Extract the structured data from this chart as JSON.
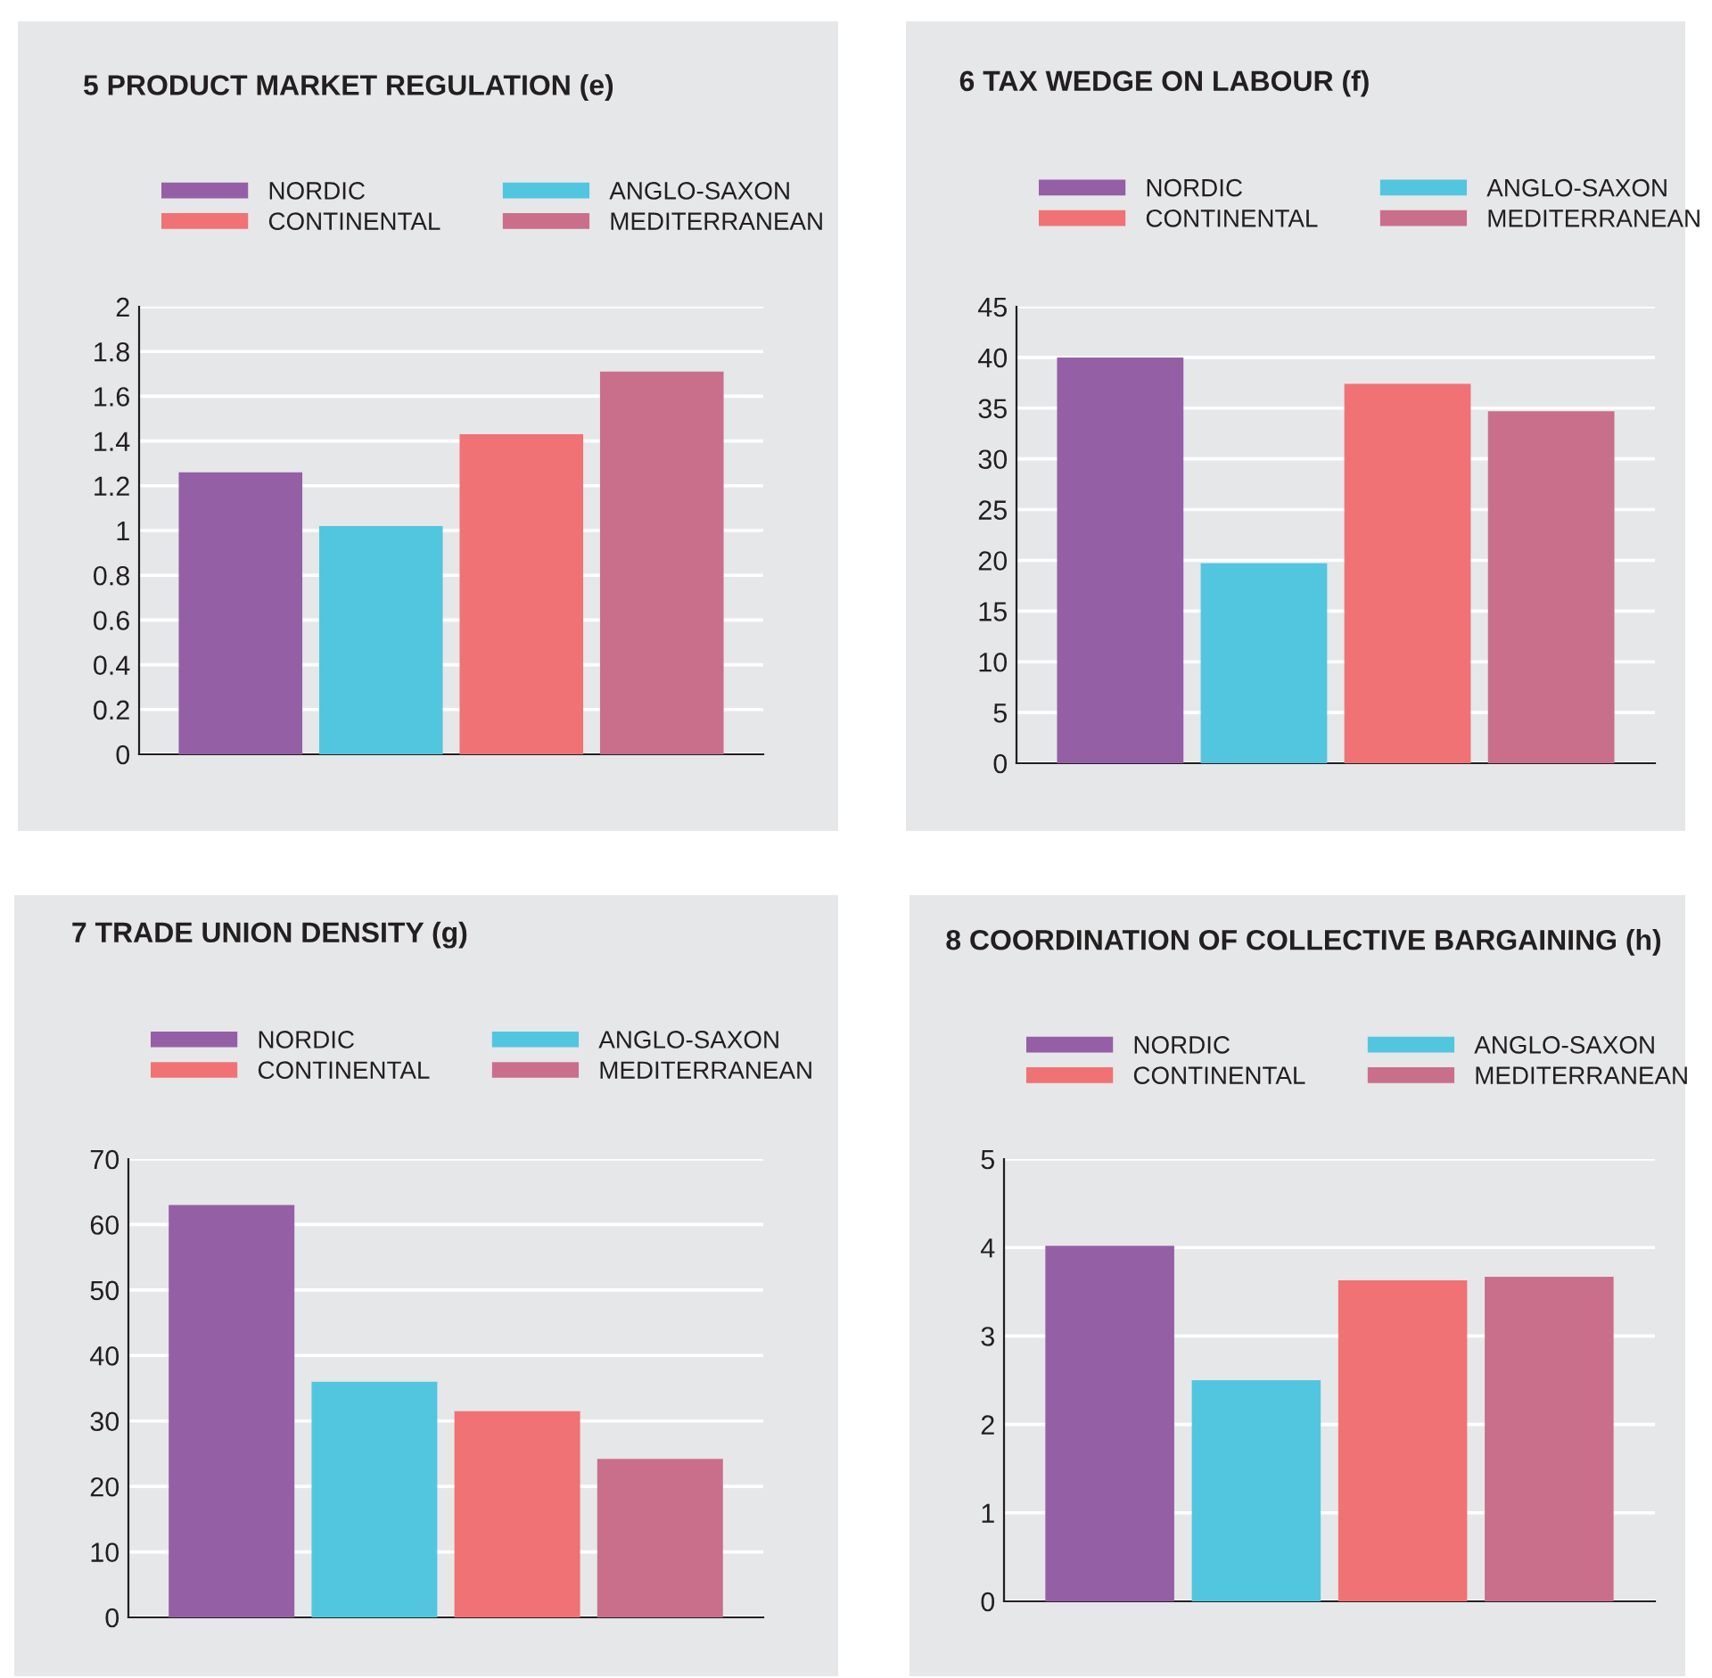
{
  "chart_data": [
    {
      "type": "bar",
      "title": "5 PRODUCT MARKET REGULATION (e)",
      "categories": [
        null
      ],
      "ylim": [
        0,
        2
      ],
      "yticks": [
        0,
        0.2,
        0.4,
        0.6,
        0.8,
        1,
        1.2,
        1.4,
        1.6,
        1.8,
        2
      ],
      "grid": "y",
      "legend": "top",
      "tick_labels": "y",
      "series": [
        {
          "name": "NORDIC",
          "color": "#955fa6",
          "values": [
            1.26
          ]
        },
        {
          "name": "ANGLO-SAXON",
          "color": "#52c6de",
          "values": [
            1.02
          ]
        },
        {
          "name": "CONTINENTAL",
          "color": "#f07275",
          "values": [
            1.43
          ]
        },
        {
          "name": "MEDITERRANEAN",
          "color": "#c96f8b",
          "values": [
            1.71
          ]
        }
      ]
    },
    {
      "type": "bar",
      "title": "6 TAX WEDGE ON LABOUR (f)",
      "categories": [
        null
      ],
      "ylim": [
        0,
        45
      ],
      "yticks": [
        0,
        5,
        10,
        15,
        20,
        25,
        30,
        35,
        40,
        45
      ],
      "grid": "y",
      "legend": "top",
      "tick_labels": "y",
      "series": [
        {
          "name": "NORDIC",
          "color": "#955fa6",
          "values": [
            40
          ]
        },
        {
          "name": "ANGLO-SAXON",
          "color": "#52c6de",
          "values": [
            19.7
          ]
        },
        {
          "name": "CONTINENTAL",
          "color": "#f07275",
          "values": [
            37.4
          ]
        },
        {
          "name": "MEDITERRANEAN",
          "color": "#c96f8b",
          "values": [
            34.7
          ]
        }
      ]
    },
    {
      "type": "bar",
      "title": "7 TRADE UNION DENSITY (g)",
      "categories": [
        null
      ],
      "ylim": [
        0,
        70
      ],
      "yticks": [
        0,
        10,
        20,
        30,
        40,
        50,
        60,
        70
      ],
      "grid": "y",
      "legend": "top",
      "tick_labels": "y",
      "series": [
        {
          "name": "NORDIC",
          "color": "#955fa6",
          "values": [
            63
          ]
        },
        {
          "name": "ANGLO-SAXON",
          "color": "#52c6de",
          "values": [
            36
          ]
        },
        {
          "name": "CONTINENTAL",
          "color": "#f07275",
          "values": [
            31.5
          ]
        },
        {
          "name": "MEDITERRANEAN",
          "color": "#c96f8b",
          "values": [
            24.2
          ]
        }
      ]
    },
    {
      "type": "bar",
      "title": "8 COORDINATION OF COLLECTIVE BARGAINING (h)",
      "categories": [
        null
      ],
      "ylim": [
        0,
        5
      ],
      "yticks": [
        0,
        1,
        2,
        3,
        4,
        5
      ],
      "grid": "y",
      "legend": "top",
      "tick_labels": "y",
      "series": [
        {
          "name": "NORDIC",
          "color": "#955fa6",
          "values": [
            4.02
          ]
        },
        {
          "name": "ANGLO-SAXON",
          "color": "#52c6de",
          "values": [
            2.5
          ]
        },
        {
          "name": "CONTINENTAL",
          "color": "#f07275",
          "values": [
            3.63
          ]
        },
        {
          "name": "MEDITERRANEAN",
          "color": "#c96f8b",
          "values": [
            3.67
          ]
        }
      ]
    }
  ]
}
